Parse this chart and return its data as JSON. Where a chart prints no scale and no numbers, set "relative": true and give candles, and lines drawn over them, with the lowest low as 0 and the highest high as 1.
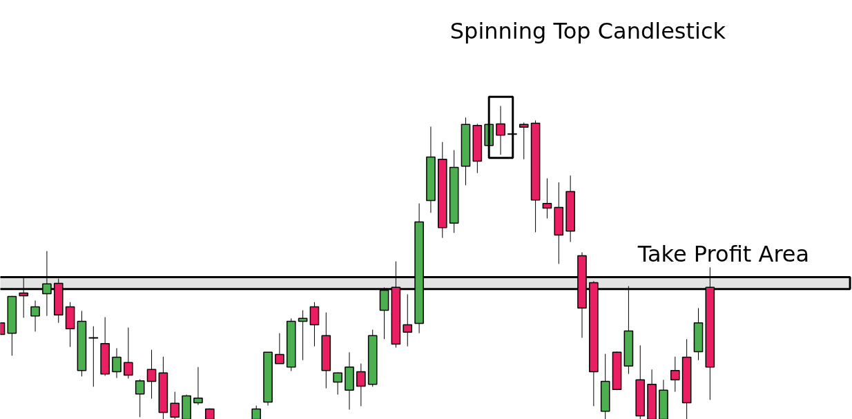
{
  "chart_data": {
    "type": "candlestick",
    "relative": true,
    "categories": [
      null,
      null,
      null,
      null,
      null,
      null,
      null,
      null,
      null,
      null,
      null,
      null,
      null,
      null,
      null,
      null,
      null,
      null,
      null,
      null,
      null,
      null,
      null,
      null,
      null,
      null,
      null,
      null,
      null,
      null,
      null,
      null,
      null,
      null,
      null,
      null,
      null,
      null,
      null,
      null,
      null,
      null,
      null,
      null,
      null,
      null,
      null,
      null,
      null,
      null,
      null,
      null,
      null,
      null,
      null,
      null,
      null,
      null,
      null,
      null,
      null,
      null
    ],
    "ohlc": [
      [
        0.308,
        0.308,
        0.271,
        0.271
      ],
      [
        0.275,
        0.394,
        0.203,
        0.392
      ],
      [
        0.403,
        0.452,
        0.324,
        0.394
      ],
      [
        0.33,
        0.379,
        0.28,
        0.359
      ],
      [
        0.401,
        0.537,
        0.33,
        0.432
      ],
      [
        0.434,
        0.449,
        0.308,
        0.333
      ],
      [
        0.359,
        0.374,
        0.231,
        0.289
      ],
      [
        0.156,
        0.346,
        0.137,
        0.313
      ],
      [
        0.26,
        0.297,
        0.104,
        0.26
      ],
      [
        0.242,
        0.326,
        0.139,
        0.145
      ],
      [
        0.152,
        0.227,
        0.132,
        0.198
      ],
      [
        0.181,
        0.293,
        0.13,
        0.141
      ],
      [
        0.081,
        0.128,
        0.007,
        0.123
      ],
      [
        0.159,
        0.222,
        0.066,
        0.121
      ],
      [
        0.148,
        0.2,
        0,
        0.022
      ],
      [
        0.051,
        0.088,
        0,
        0.007
      ],
      [
        0,
        0.079,
        0,
        0.075
      ],
      [
        0.053,
        0.167,
        0.046,
        0.068
      ],
      [
        0.033,
        0.035,
        0,
        0
      ],
      null,
      null,
      null,
      [
        0,
        0.044,
        0,
        0.033
      ],
      [
        0.055,
        0.214,
        0.044,
        0.214
      ],
      [
        0.207,
        0.275,
        0.178,
        0.178
      ],
      [
        0.167,
        0.322,
        0.154,
        0.313
      ],
      [
        0.313,
        0.348,
        0.189,
        0.322
      ],
      [
        0.359,
        0.374,
        0.233,
        0.302
      ],
      [
        0.267,
        0.341,
        0.099,
        0.156
      ],
      [
        0.119,
        0.15,
        0.079,
        0.148
      ],
      [
        0.093,
        0.214,
        0.031,
        0.167
      ],
      [
        0.152,
        0.178,
        0.042,
        0.106
      ],
      [
        0.112,
        0.286,
        0.104,
        0.267
      ],
      [
        0.348,
        0.421,
        0.256,
        0.412
      ],
      [
        0.421,
        0.504,
        0.229,
        0.24
      ],
      [
        0.302,
        0.399,
        0.233,
        0.278
      ],
      [
        0.306,
        0.689,
        0.275,
        0.63
      ],
      [
        0.698,
        0.934,
        0.659,
        0.837
      ],
      [
        0.83,
        0.885,
        0.579,
        0.612
      ],
      [
        0.626,
        0.859,
        0.595,
        0.804
      ],
      [
        0.808,
        0.963,
        0.747,
        0.941
      ],
      [
        0.938,
        0.943,
        0.786,
        0.824
      ],
      [
        0.874,
        0.941,
        0.874,
        0.941
      ],
      [
        0.943,
        1,
        0.844,
        0.907
      ],
      [
        0.91,
        0.91,
        0.91,
        0.91
      ],
      [
        0.941,
        0.947,
        0.83,
        0.932
      ],
      [
        0.945,
        0.954,
        0.597,
        0.7
      ],
      [
        0.689,
        0.769,
        0.641,
        0.674
      ],
      [
        0.676,
        0.756,
        0.496,
        0.588
      ],
      [
        0.727,
        0.778,
        0.566,
        0.601
      ],
      [
        0.522,
        0.533,
        0.26,
        0.355
      ],
      [
        0.436,
        0.441,
        0.042,
        0.152
      ],
      [
        0.026,
        0.209,
        0,
        0.121
      ],
      [
        0.214,
        0.216,
        0.093,
        0.095
      ],
      [
        0.17,
        0.425,
        0.145,
        0.282
      ],
      [
        0.126,
        0.236,
        0,
        0.011
      ],
      [
        0.112,
        0.159,
        0,
        0
      ],
      [
        0,
        0.126,
        0,
        0.093
      ],
      [
        0.156,
        0.2,
        0.088,
        0.126
      ],
      [
        0.198,
        0.256,
        0,
        0.053
      ],
      [
        0.216,
        0.355,
        0.189,
        0.308
      ],
      [
        0.421,
        0.485,
        0.062,
        0.167
      ]
    ],
    "colors": [
      "#e91e63",
      "#4caf50",
      "#e91e63",
      "#4caf50",
      "#4caf50",
      "#e91e63",
      "#e91e63",
      "#4caf50",
      "#000000",
      "#e91e63",
      "#4caf50",
      "#e91e63",
      "#4caf50",
      "#e91e63",
      "#e91e63",
      "#e91e63",
      "#4caf50",
      "#4caf50",
      "#e91e63",
      null,
      null,
      null,
      "#4caf50",
      "#4caf50",
      "#e91e63",
      "#4caf50",
      "#4caf50",
      "#e91e63",
      "#e91e63",
      "#4caf50",
      "#4caf50",
      "#e91e63",
      "#4caf50",
      "#4caf50",
      "#e91e63",
      "#e91e63",
      "#4caf50",
      "#4caf50",
      "#e91e63",
      "#4caf50",
      "#4caf50",
      "#e91e63",
      "#4caf50",
      "#e91e63",
      "#000000",
      "#e91e63",
      "#e91e63",
      "#e91e63",
      "#e91e63",
      "#e91e63",
      "#e91e63",
      "#e91e63",
      "#4caf50",
      "#e91e63",
      "#4caf50",
      "#e91e63",
      "#e91e63",
      "#4caf50",
      "#e91e63",
      "#e91e63",
      "#4caf50",
      "#e91e63"
    ],
    "bands": [
      {
        "axis": "y",
        "from": 0.416,
        "to": 0.454,
        "label": "Take Profit Area",
        "color": "#dedede"
      }
    ],
    "annotations": [
      "Spinning Top Candlestick"
    ]
  }
}
